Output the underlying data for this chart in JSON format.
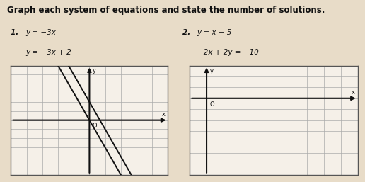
{
  "title": "Graph each system of equations and state the number of solutions.",
  "bg_color": "#e8dcc8",
  "panel_bg": "#f5f0e8",
  "grid_color": "#aaaaaa",
  "axis_color": "#111111",
  "line_color": "#111111",
  "title_fontsize": 8.5,
  "label_fontsize": 7.5,
  "problem1": {
    "num": "1.",
    "eq1": "y = −3x",
    "eq2": "y = −3x + 2",
    "xlim": [
      -5,
      5
    ],
    "ylim": [
      -6,
      6
    ],
    "origin_x": 0,
    "origin_y": 0,
    "origin_label": "O",
    "x_label": "x",
    "y_label": "y",
    "lines": [
      {
        "slope": -3,
        "intercept": 0
      },
      {
        "slope": -3,
        "intercept": 2
      }
    ]
  },
  "problem2": {
    "num": "2.",
    "eq1": "y = x − 5",
    "eq2": "−2x + 2y = −10",
    "xlim": [
      -1,
      9
    ],
    "ylim": [
      -7,
      3
    ],
    "origin_x": 0,
    "origin_y": 0,
    "origin_label": "O",
    "x_label": "x",
    "y_label": "y",
    "lines": []
  }
}
